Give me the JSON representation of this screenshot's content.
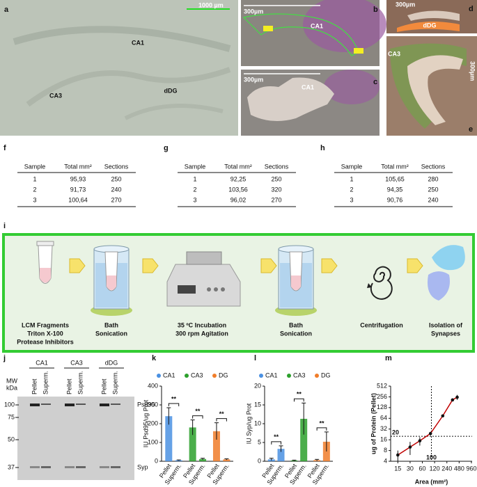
{
  "micrographs": [
    {
      "label": "a",
      "scale": "1000 µm",
      "regions": [
        "CA1",
        "CA3",
        "dDG"
      ]
    },
    {
      "label": "b",
      "scale": "300µm",
      "regions": [
        "CA1"
      ]
    },
    {
      "label": "c",
      "scale": "300µm",
      "regions": [
        "CA1"
      ]
    },
    {
      "label": "d",
      "scale": "300µm",
      "regions": [
        "dDG"
      ]
    },
    {
      "label": "e",
      "scale": "300µm",
      "regions": [
        "CA3"
      ]
    }
  ],
  "tables": [
    {
      "label": "f",
      "header": [
        "Sample",
        "Total mm²",
        "Sections"
      ],
      "rows": [
        [
          "1",
          "95,93",
          "250"
        ],
        [
          "2",
          "91,73",
          "240"
        ],
        [
          "3",
          "100,64",
          "270"
        ]
      ]
    },
    {
      "label": "g",
      "header": [
        "Sample",
        "Total mm²",
        "Sections"
      ],
      "rows": [
        [
          "1",
          "92,25",
          "250"
        ],
        [
          "2",
          "103,56",
          "320"
        ],
        [
          "3",
          "96,02",
          "270"
        ]
      ]
    },
    {
      "label": "h",
      "header": [
        "Sample",
        "Total mm²",
        "Sections"
      ],
      "rows": [
        [
          "1",
          "105,65",
          "280"
        ],
        [
          "2",
          "94,35",
          "250"
        ],
        [
          "3",
          "90,76",
          "240"
        ]
      ]
    }
  ],
  "workflow": {
    "label": "i",
    "steps": [
      {
        "lines": [
          "LCM Fragments",
          "Triton X-100",
          "Protease Inhibitors"
        ]
      },
      {
        "lines": [
          "Bath",
          "Sonication"
        ]
      },
      {
        "lines": [
          "35 ºC Incubation",
          "300 rpm Agitation"
        ]
      },
      {
        "lines": [
          "Bath",
          "Sonication"
        ]
      },
      {
        "lines": [
          "Centrifugation"
        ]
      },
      {
        "lines": [
          "Isolation of",
          "Synapses"
        ]
      }
    ]
  },
  "blot": {
    "label": "j",
    "groups": [
      "CA1",
      "CA3",
      "dDG"
    ],
    "lanes": [
      "Pellet",
      "Superm."
    ],
    "mw_title": [
      "MW",
      "kDa"
    ],
    "markers": [
      100,
      75,
      50,
      37
    ],
    "bands": [
      "Psd95",
      "Syp"
    ]
  },
  "chart_data": [
    {
      "type": "bar",
      "label": "k",
      "ylabel": "IU Psd95/ug Prot",
      "categories": [
        "Pellet",
        "Superm."
      ],
      "series": [
        {
          "name": "CA1",
          "color": "#4a90e2",
          "values": [
            240,
            5
          ],
          "errors": [
            45,
            2
          ]
        },
        {
          "name": "CA3",
          "color": "#2ca02c",
          "values": [
            180,
            12
          ],
          "errors": [
            40,
            4
          ]
        },
        {
          "name": "DG",
          "color": "#f07d2a",
          "values": [
            160,
            10
          ],
          "errors": [
            45,
            3
          ]
        }
      ],
      "significance": [
        "**",
        "**",
        "**"
      ],
      "ylim": [
        0,
        400
      ],
      "yticks": [
        0,
        100,
        200,
        300,
        400
      ]
    },
    {
      "type": "bar",
      "label": "l",
      "ylabel": "IU Syp/ug Prot",
      "categories": [
        "Pellet",
        "Superm."
      ],
      "series": [
        {
          "name": "CA1",
          "color": "#4a90e2",
          "values": [
            0.5,
            3.3
          ],
          "errors": [
            0.3,
            0.8
          ]
        },
        {
          "name": "CA3",
          "color": "#2ca02c",
          "values": [
            0.2,
            11.3
          ],
          "errors": [
            0.1,
            4.2
          ]
        },
        {
          "name": "DG",
          "color": "#f07d2a",
          "values": [
            0.3,
            5.2
          ],
          "errors": [
            0.2,
            2.6
          ]
        }
      ],
      "significance": [
        "**",
        "**",
        "**"
      ],
      "ylim": [
        0,
        20
      ],
      "yticks": [
        0,
        5,
        10,
        15,
        20
      ]
    },
    {
      "type": "line",
      "label": "m",
      "xlabel": "Area (mm²)",
      "ylabel": "ug of Protein (Pellet)",
      "log_x": true,
      "log_y": true,
      "x": [
        15,
        30,
        52,
        95,
        190,
        330,
        430
      ],
      "series": [
        {
          "color": "#c00000",
          "values": [
            6,
            10,
            15,
            24,
            75,
            210,
            250
          ],
          "errors": [
            2,
            4,
            4,
            3,
            3,
            20,
            40
          ]
        }
      ],
      "xlim": [
        10,
        1000
      ],
      "ylim": [
        4,
        512
      ],
      "xticks": [
        15,
        30,
        60,
        120,
        240,
        480,
        960
      ],
      "yticks": [
        4,
        8,
        16,
        32,
        64,
        128,
        256,
        512
      ],
      "reference_x": 100,
      "reference_y": 20
    }
  ]
}
